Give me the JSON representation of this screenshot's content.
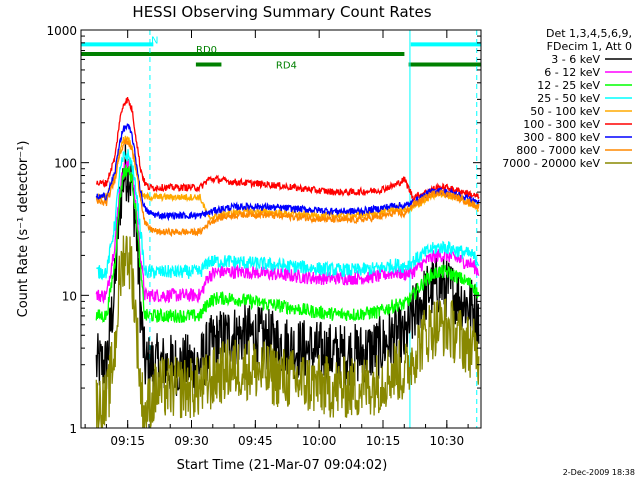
{
  "chart_data": {
    "type": "line",
    "title": "HESSI Observing Summary Count Rates",
    "xlabel": "Start Time (21-Mar-07 09:04:02)",
    "ylabel": "Count Rate (s⁻¹ detector⁻¹)",
    "yscale": "log",
    "ylim": [
      1,
      1000
    ],
    "xlim_minutes": [
      0,
      94
    ],
    "x_ticks": [
      "09:15",
      "09:30",
      "09:45",
      "10:00",
      "10:15",
      "10:30"
    ],
    "y_ticks": [
      "1",
      "10",
      "100",
      "1000"
    ],
    "legend_header": [
      "Det 1,3,4,5,6,9,",
      "FDecim 1, Att 0"
    ],
    "grid": false,
    "legend_position": "right, outside plot",
    "x_minutes": [
      3.6,
      6,
      8,
      9,
      10,
      11,
      12,
      13,
      14,
      15,
      16,
      18,
      20,
      22,
      26,
      28,
      30,
      32,
      35,
      40,
      45,
      50,
      55,
      60,
      65,
      70,
      74,
      76,
      78,
      80,
      82,
      84,
      86,
      88,
      90,
      92,
      93.5
    ],
    "series": [
      {
        "name": "3 - 6 keV",
        "color": "#000000",
        "values": [
          3.0,
          3.0,
          12,
          45,
          80,
          90,
          70,
          30,
          8,
          3.0,
          3.0,
          3.0,
          3.0,
          3.0,
          3.0,
          3.0,
          4.0,
          4.5,
          5.0,
          5.0,
          4.5,
          4.0,
          3.8,
          3.6,
          3.6,
          4.0,
          5.0,
          4.5,
          7,
          9,
          11,
          12,
          11.5,
          10,
          9,
          8,
          7
        ]
      },
      {
        "name": "6 - 12 keV",
        "color": "#ff00ff",
        "values": [
          10,
          10,
          25,
          60,
          90,
          95,
          80,
          45,
          20,
          10,
          10,
          10,
          10,
          10,
          10,
          10,
          14,
          15,
          15,
          15,
          14.5,
          14,
          13.5,
          13.5,
          13.5,
          14,
          15,
          14.5,
          15,
          17,
          19,
          20,
          20,
          19,
          18,
          17,
          15
        ]
      },
      {
        "name": "12 - 25 keV",
        "color": "#00ff00",
        "values": [
          7,
          7,
          18,
          50,
          85,
          90,
          75,
          40,
          15,
          7,
          7,
          7,
          7,
          7,
          7,
          7,
          9,
          9.5,
          9.5,
          9,
          8.5,
          8,
          7.5,
          7.2,
          7.2,
          7.5,
          8.5,
          8.5,
          10,
          12,
          14,
          15,
          15,
          14,
          13,
          12,
          10
        ]
      },
      {
        "name": "25 - 50 keV",
        "color": "#00ffff",
        "values": [
          15,
          15,
          35,
          80,
          110,
          115,
          95,
          60,
          30,
          15,
          15,
          15,
          15,
          15,
          15,
          15,
          18,
          18,
          18,
          17.5,
          17,
          16.5,
          16,
          15.5,
          15.5,
          16,
          17,
          16.5,
          18,
          20,
          22,
          23,
          23,
          22,
          21,
          20,
          18
        ]
      },
      {
        "name": "50 - 100 keV",
        "color": "#ffaa00",
        "values": [
          55,
          55,
          80,
          120,
          150,
          155,
          130,
          90,
          60,
          55,
          55,
          55,
          55,
          55,
          55,
          55,
          38,
          40,
          42,
          43,
          42,
          41,
          40,
          40,
          40,
          42,
          45,
          44,
          45,
          50,
          55,
          58,
          57,
          55,
          52,
          48,
          45
        ]
      },
      {
        "name": "100 - 300 keV",
        "color": "#ff0000",
        "values": [
          70,
          70,
          110,
          200,
          280,
          300,
          250,
          150,
          90,
          70,
          65,
          65,
          65,
          65,
          65,
          65,
          75,
          75,
          72,
          70,
          68,
          65,
          62,
          60,
          60,
          62,
          68,
          75,
          55,
          58,
          62,
          65,
          65,
          62,
          60,
          57,
          55
        ]
      },
      {
        "name": "300 - 800 keV",
        "color": "#0000ff",
        "values": [
          55,
          55,
          85,
          140,
          180,
          190,
          160,
          100,
          60,
          45,
          42,
          40,
          40,
          40,
          40,
          40,
          42,
          44,
          46,
          47,
          46,
          45,
          44,
          43,
          43,
          45,
          48,
          47,
          50,
          55,
          60,
          62,
          60,
          58,
          55,
          52,
          50
        ]
      },
      {
        "name": "800 - 7000 keV",
        "color": "#ff8800",
        "values": [
          50,
          50,
          75,
          115,
          140,
          145,
          125,
          85,
          55,
          35,
          32,
          30,
          30,
          30,
          30,
          30,
          35,
          38,
          40,
          41,
          40,
          39,
          38,
          37,
          37,
          39,
          42,
          41,
          48,
          52,
          57,
          60,
          58,
          55,
          52,
          49,
          47
        ]
      },
      {
        "name": "7000 - 20000 keV",
        "color": "#888800",
        "values": [
          1.5,
          1.5,
          4,
          12,
          20,
          21,
          15,
          6,
          2,
          1.2,
          1.5,
          2,
          2,
          2,
          2,
          2,
          2.2,
          2.5,
          2.8,
          2.8,
          2.5,
          2.3,
          2.1,
          2,
          2,
          2.2,
          2.8,
          2.5,
          3.5,
          4.5,
          5.5,
          6,
          5.8,
          5.2,
          4.5,
          4,
          3.5
        ]
      }
    ],
    "annotations": [
      {
        "label": "N",
        "color": "#00ffff",
        "x_start": 0,
        "x_end": 17,
        "level": 780
      },
      {
        "label": "",
        "color": "#00ffff",
        "x_start": 77.5,
        "x_end": 94,
        "level": 780
      },
      {
        "label": "RD0",
        "color": "#008000",
        "x_start": 0,
        "x_end": 76,
        "level": 660
      },
      {
        "label": "RD4",
        "color": "#008000",
        "x_start": 27,
        "x_end": 33,
        "level": 550
      },
      {
        "label": "",
        "color": "#008000",
        "x_start": 77,
        "x_end": 94,
        "level": 550
      }
    ],
    "vertical_markers": [
      {
        "x": 16.2,
        "style": "dashed",
        "color": "#00ffff"
      },
      {
        "x": 77.3,
        "style": "solid",
        "color": "#00ffff"
      },
      {
        "x": 93.0,
        "style": "dashed",
        "color": "#00ffff"
      }
    ],
    "footer_date": "2-Dec-2009 18:38"
  }
}
